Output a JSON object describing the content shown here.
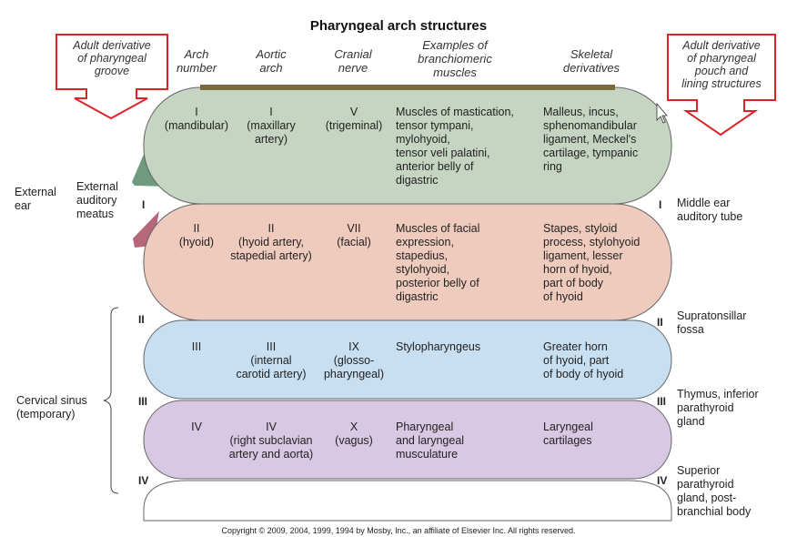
{
  "title": "Pharyngeal arch structures",
  "groove_label": "Adult derivative\nof pharyngeal\ngroove",
  "pouch_label": "Adult derivative\nof pharyngeal\npouch and\nlining structures",
  "columns": {
    "arch_number": "Arch\nnumber",
    "aortic_arch": "Aortic\narch",
    "cranial_nerve": "Cranial\nnerve",
    "muscles": "Examples of\nbranchiomeric\nmuscles",
    "skeletal": "Skeletal\nderivatives"
  },
  "arches": [
    {
      "number": "I\n(mandibular)",
      "aortic": "I\n(maxillary\nartery)",
      "nerve": "V\n(trigeminal)",
      "muscles": "Muscles of mastication,\n  tensor tympani,\n  mylohyoid,\n  tensor veli palatini,\n  anterior belly of\n  digastric",
      "skeletal": "Malleus, incus,\n  sphenomandibular\n  ligament, Meckel's\n  cartilage, tympanic\n  ring",
      "fill": "#c6d4c2"
    },
    {
      "number": "II\n(hyoid)",
      "aortic": "II\n(hyoid artery,\nstapedial artery)",
      "nerve": "VII\n(facial)",
      "muscles": "Muscles of facial\n  expression,\n  stapedius,\n  stylohyoid,\n  posterior belly of\n  digastric",
      "skeletal": "Stapes, styloid\n  process, stylohyoid\n  ligament, lesser\n  horn of hyoid,\n  part of body\n  of hyoid",
      "fill": "#efcbbe"
    },
    {
      "number": "III",
      "aortic": "III\n(internal\ncarotid artery)",
      "nerve": "IX\n(glosso-\npharyngeal)",
      "muscles": "Stylopharyngeus",
      "skeletal": "Greater horn\n  of hyoid, part\n  of body of hyoid",
      "fill": "#c8dff2"
    },
    {
      "number": "IV",
      "aortic": "IV\n(right subclavian\nartery and aorta)",
      "nerve": "X\n(vagus)",
      "muscles": "Pharyngeal\n  and laryngeal\n  musculature",
      "skeletal": "Laryngeal\n  cartilages",
      "fill": "#d8c8e3"
    }
  ],
  "left_side": {
    "external_ear": "External\near",
    "external_auditory_meatus": "External\nauditory\nmeatus",
    "cervical_sinus": "Cervical sinus\n(temporary)"
  },
  "right_side": {
    "middle_ear": "Middle ear\n  auditory tube",
    "supratonsillar": "Supratonsillar\n  fossa",
    "thymus": "Thymus, inferior\n  parathyroid\n  gland",
    "superior_parathyroid": "Superior\n  parathyroid\n  gland, post-\n  branchial body"
  },
  "pouch_numbers": [
    "I",
    "II",
    "III",
    "IV"
  ],
  "copyright": "Copyright © 2009, 2004, 1999, 1994 by Mosby, Inc., an affiliate of Elsevier Inc. All rights reserved.",
  "colors": {
    "arrow_border": "#d9252a",
    "top_bar": "#7a6a3c",
    "outline": "#555555"
  }
}
